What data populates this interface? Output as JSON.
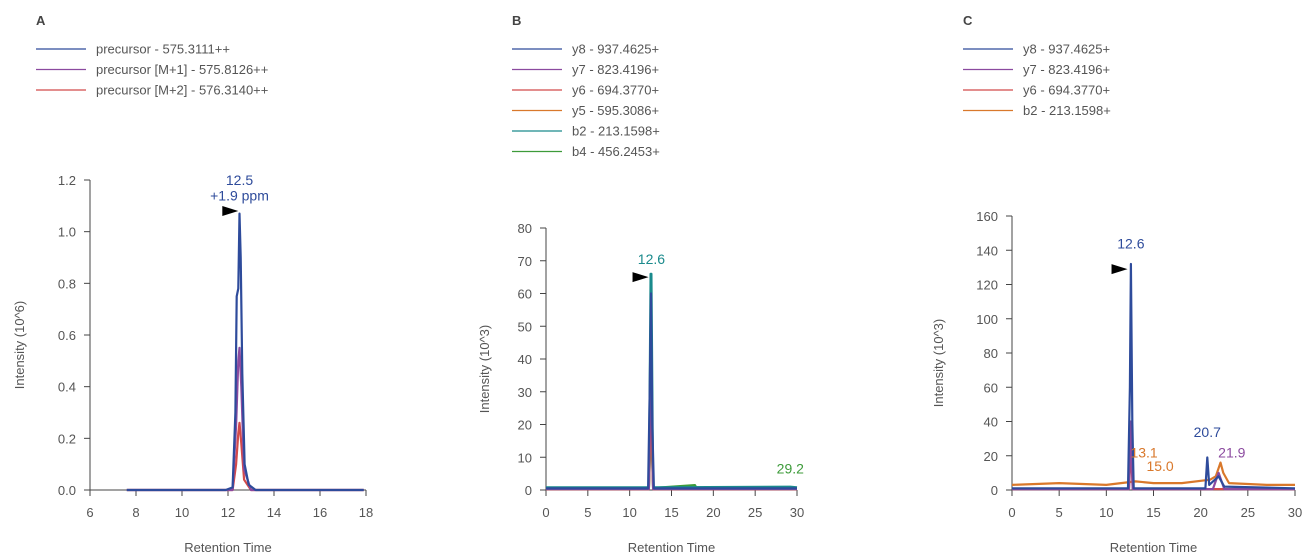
{
  "chart_data": [
    {
      "panel": "A",
      "type": "line",
      "xlabel": "Retention Time",
      "ylabel": "Intensity (10^6)",
      "xlim": [
        6,
        18
      ],
      "ylim": [
        0,
        1.2
      ],
      "xticks": [
        6,
        8,
        10,
        12,
        14,
        16,
        18
      ],
      "yticks": [
        "0.0",
        "0.2",
        "0.4",
        "0.6",
        "0.8",
        "1.0",
        "1.2"
      ],
      "legend_position": "top-left",
      "series": [
        {
          "name": "precursor - 575.3111++",
          "color": "#2e4b9b",
          "points": [
            [
              7.6,
              0.0
            ],
            [
              11.9,
              0.0
            ],
            [
              12.2,
              0.01
            ],
            [
              12.32,
              0.3
            ],
            [
              12.38,
              0.75
            ],
            [
              12.45,
              0.78
            ],
            [
              12.5,
              1.07
            ],
            [
              12.55,
              0.9
            ],
            [
              12.62,
              0.45
            ],
            [
              12.72,
              0.1
            ],
            [
              12.9,
              0.02
            ],
            [
              13.2,
              0.0
            ],
            [
              17.9,
              0.0
            ]
          ]
        },
        {
          "name": "precursor [M+1] - 575.8126++",
          "color": "#8b4a9f",
          "points": [
            [
              7.6,
              0.0
            ],
            [
              12.2,
              0.0
            ],
            [
              12.35,
              0.25
            ],
            [
              12.45,
              0.5
            ],
            [
              12.5,
              0.55
            ],
            [
              12.58,
              0.4
            ],
            [
              12.7,
              0.08
            ],
            [
              13.0,
              0.0
            ],
            [
              17.9,
              0.0
            ]
          ]
        },
        {
          "name": "precursor [M+2] - 576.3140++",
          "color": "#d24a4a",
          "points": [
            [
              7.6,
              0.0
            ],
            [
              12.2,
              0.0
            ],
            [
              12.35,
              0.1
            ],
            [
              12.45,
              0.22
            ],
            [
              12.5,
              0.26
            ],
            [
              12.58,
              0.18
            ],
            [
              12.7,
              0.04
            ],
            [
              13.0,
              0.0
            ],
            [
              17.9,
              0.0
            ]
          ]
        }
      ],
      "annotations": [
        {
          "text": "12.5",
          "x": 12.5,
          "y": 1.18,
          "color": "#2e4b9b"
        },
        {
          "text": "+1.9 ppm",
          "x": 12.5,
          "y": 1.12,
          "color": "#2e4b9b"
        }
      ],
      "marker": {
        "x": 12.1,
        "y": 1.08
      }
    },
    {
      "panel": "B",
      "type": "line",
      "xlabel": "Retention Time",
      "ylabel": "Intensity (10^3)",
      "xlim": [
        0,
        30
      ],
      "ylim": [
        0,
        80
      ],
      "xticks": [
        0,
        5,
        10,
        15,
        20,
        25,
        30
      ],
      "yticks": [
        "0",
        "10",
        "20",
        "30",
        "40",
        "50",
        "60",
        "70",
        "80"
      ],
      "legend_position": "top-left",
      "series": [
        {
          "name": "y8 - 937.4625+",
          "color": "#2e4b9b",
          "points": [
            [
              0,
              0.5
            ],
            [
              12.2,
              0.5
            ],
            [
              12.4,
              30
            ],
            [
              12.55,
              60
            ],
            [
              12.7,
              20
            ],
            [
              12.9,
              0.5
            ],
            [
              30,
              0.5
            ]
          ]
        },
        {
          "name": "y7 - 823.4196+",
          "color": "#8b4a9f",
          "points": [
            [
              0,
              0.3
            ],
            [
              12.3,
              0.3
            ],
            [
              12.55,
              45
            ],
            [
              12.8,
              0.3
            ],
            [
              30,
              0.3
            ]
          ]
        },
        {
          "name": "y6 - 694.3770+",
          "color": "#d24a4a",
          "points": [
            [
              0,
              0.2
            ],
            [
              12.3,
              0.2
            ],
            [
              12.55,
              35
            ],
            [
              12.8,
              0.2
            ],
            [
              30,
              0.2
            ]
          ]
        },
        {
          "name": "y5 - 595.3086+",
          "color": "#d9782b",
          "points": [
            [
              0,
              0.4
            ],
            [
              12.3,
              0.4
            ],
            [
              12.55,
              25
            ],
            [
              12.8,
              0.4
            ],
            [
              30,
              0.4
            ]
          ]
        },
        {
          "name": "b2 - 213.1598+",
          "color": "#1a8a8c",
          "points": [
            [
              0,
              0.8
            ],
            [
              12.3,
              0.8
            ],
            [
              12.5,
              66
            ],
            [
              12.6,
              66
            ],
            [
              12.8,
              0.8
            ],
            [
              29.2,
              1.0
            ],
            [
              30,
              0.8
            ]
          ]
        },
        {
          "name": "b4 - 456.2453+",
          "color": "#3d9b3a",
          "points": [
            [
              0,
              0.6
            ],
            [
              12.3,
              0.6
            ],
            [
              12.55,
              20
            ],
            [
              12.8,
              0.6
            ],
            [
              17.8,
              1.5
            ],
            [
              18,
              0.6
            ],
            [
              30,
              0.6
            ]
          ]
        }
      ],
      "annotations": [
        {
          "text": "12.6",
          "x": 12.6,
          "y": 69,
          "color": "#1a8a8c"
        },
        {
          "text": "29.2",
          "x": 29.2,
          "y": 5,
          "color": "#3d9b3a"
        }
      ],
      "marker": {
        "x": 11.3,
        "y": 65
      }
    },
    {
      "panel": "C",
      "type": "line",
      "xlabel": "Retention Time",
      "ylabel": "Intensity (10^3)",
      "xlim": [
        0,
        30
      ],
      "ylim": [
        0,
        160
      ],
      "xticks": [
        0,
        5,
        10,
        15,
        20,
        25,
        30
      ],
      "yticks": [
        "0",
        "20",
        "40",
        "60",
        "80",
        "100",
        "120",
        "140",
        "160"
      ],
      "legend_position": "top-left",
      "series": [
        {
          "name": "y8 - 937.4625+",
          "color": "#2e4b9b",
          "points": [
            [
              0,
              1
            ],
            [
              12.3,
              1
            ],
            [
              12.5,
              60
            ],
            [
              12.6,
              132
            ],
            [
              12.75,
              40
            ],
            [
              12.9,
              1
            ],
            [
              20.5,
              1
            ],
            [
              20.7,
              19
            ],
            [
              20.9,
              3
            ],
            [
              21.9,
              8
            ],
            [
              22.5,
              2
            ],
            [
              30,
              1
            ]
          ]
        },
        {
          "name": "y7 - 823.4196+",
          "color": "#8b4a9f",
          "points": [
            [
              0,
              0.5
            ],
            [
              12.4,
              0.5
            ],
            [
              12.6,
              40
            ],
            [
              12.8,
              0.5
            ],
            [
              21.3,
              0.5
            ],
            [
              21.9,
              10
            ],
            [
              22.5,
              0.5
            ],
            [
              30,
              0.5
            ]
          ]
        },
        {
          "name": "y6 - 694.3770+",
          "color": "#d24a4a",
          "points": [
            [
              0,
              0.5
            ],
            [
              12.4,
              0.5
            ],
            [
              12.6,
              25
            ],
            [
              12.8,
              0.5
            ],
            [
              30,
              0.5
            ]
          ]
        },
        {
          "name": "b2 - 213.1598+",
          "color": "#d9782b",
          "points": [
            [
              0,
              3
            ],
            [
              5,
              4
            ],
            [
              10,
              3
            ],
            [
              13.1,
              5
            ],
            [
              15.0,
              4
            ],
            [
              18,
              4
            ],
            [
              21,
              6
            ],
            [
              21.6,
              8
            ],
            [
              22.1,
              16
            ],
            [
              22.4,
              10
            ],
            [
              23,
              4
            ],
            [
              27,
              3
            ],
            [
              30,
              3
            ]
          ]
        }
      ],
      "annotations": [
        {
          "text": "12.6",
          "x": 12.6,
          "y": 141,
          "color": "#2e4b9b"
        },
        {
          "text": "20.7",
          "x": 20.7,
          "y": 31,
          "color": "#2e4b9b"
        },
        {
          "text": "21.9",
          "x": 23.3,
          "y": 19,
          "color": "#8b4a9f"
        },
        {
          "text": "13.1",
          "x": 14.0,
          "y": 19,
          "color": "#d9782b"
        },
        {
          "text": "15.0",
          "x": 15.7,
          "y": 11,
          "color": "#d9782b"
        }
      ],
      "marker": {
        "x": 11.4,
        "y": 129
      }
    }
  ]
}
